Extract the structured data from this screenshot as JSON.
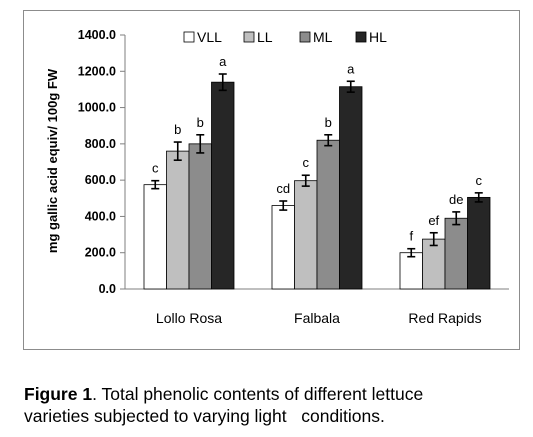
{
  "chart_data": {
    "type": "bar",
    "title": "",
    "xlabel": "",
    "ylabel": "mg gallic acid equiv/ 100g FW",
    "ylim": [
      0,
      1400
    ],
    "yticks": [
      "0.0",
      "200.0",
      "400.0",
      "600.0",
      "800.0",
      "1000.0",
      "1200.0",
      "1400.0"
    ],
    "grid": false,
    "legend_position": "top",
    "categories": [
      "Lollo Rosa",
      "Falbala",
      "Red Rapids"
    ],
    "series": [
      {
        "name": "VLL",
        "color": "#ffffff",
        "values": [
          575,
          460,
          200
        ],
        "errors": [
          22,
          25,
          22
        ],
        "letters": [
          "c",
          "cd",
          "f"
        ]
      },
      {
        "name": "LL",
        "color": "#bfbfbf",
        "values": [
          760,
          597,
          275
        ],
        "errors": [
          50,
          30,
          35
        ],
        "letters": [
          "b",
          "c",
          "ef"
        ]
      },
      {
        "name": "ML",
        "color": "#8c8c8c",
        "values": [
          800,
          820,
          390
        ],
        "errors": [
          50,
          30,
          35
        ],
        "letters": [
          "b",
          "b",
          "de"
        ]
      },
      {
        "name": "HL",
        "color": "#262626",
        "values": [
          1140,
          1115,
          505
        ],
        "errors": [
          45,
          30,
          25
        ],
        "letters": [
          "a",
          "a",
          "c"
        ]
      }
    ]
  },
  "caption": {
    "label": "Figure 1",
    "line1": ". Total phenolic contents of different lettuce",
    "line2": "varieties subjected to varying light   conditions."
  }
}
